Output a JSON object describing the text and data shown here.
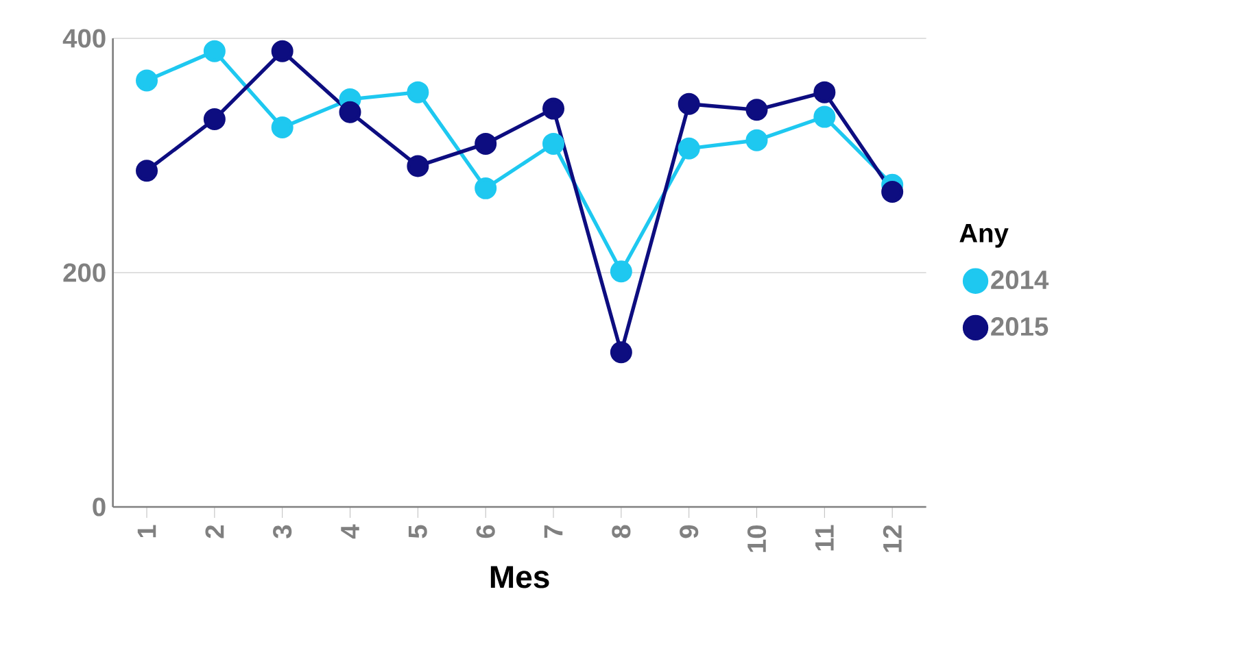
{
  "chart_data": {
    "type": "line",
    "xlabel": "Mes",
    "legend_title": "Any",
    "categories": [
      "1",
      "2",
      "3",
      "4",
      "5",
      "6",
      "7",
      "8",
      "9",
      "10",
      "11",
      "12"
    ],
    "series": [
      {
        "name": "2014",
        "color": "#1ec8f0",
        "values": [
          364,
          389,
          324,
          348,
          354,
          272,
          310,
          201,
          306,
          313,
          333,
          275
        ]
      },
      {
        "name": "2015",
        "color": "#0d0d80",
        "values": [
          287,
          331,
          389,
          337,
          291,
          310,
          340,
          132,
          344,
          339,
          354,
          269
        ]
      }
    ],
    "ylim": [
      0,
      400
    ],
    "yticks": [
      0,
      200,
      400
    ],
    "grid": "y",
    "legend": "right",
    "marker": "circle",
    "line_style": "solid"
  }
}
